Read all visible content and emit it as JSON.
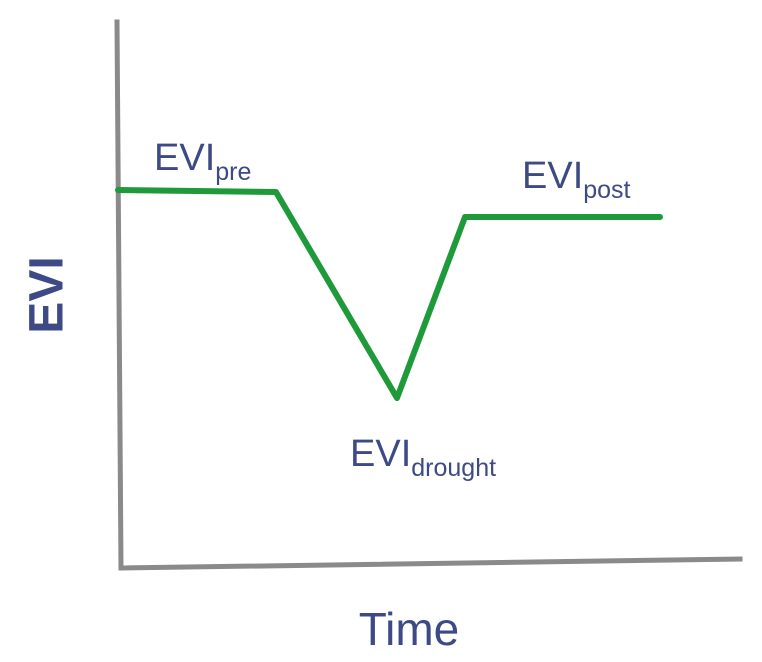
{
  "diagram": {
    "y_axis_label": "EVI",
    "x_axis_label": "Time",
    "colors": {
      "curve": "#1e9a3a",
      "axis": "#8a8a8a",
      "text": "#3d4a86"
    },
    "labels": {
      "pre": {
        "main": "EVI",
        "sub": "pre"
      },
      "drought": {
        "main": "EVI",
        "sub": "drought"
      },
      "post": {
        "main": "EVI",
        "sub": "post"
      }
    }
  }
}
